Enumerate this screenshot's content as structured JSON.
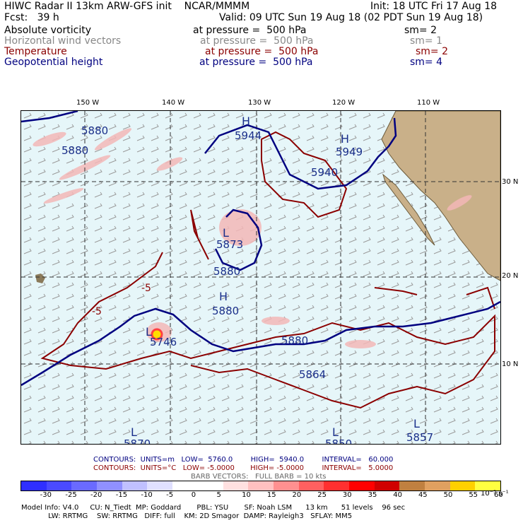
{
  "header": {
    "line1_left": "HIWC Radar II 13km ARW-GFS init    NCAR/MMMM",
    "line1_right": "Init: 18 UTC Fri 17 Aug 18",
    "line2_left": "Fcst:   39 h",
    "line2_right": "Valid: 09 UTC Sun 19 Aug 18 (02 PDT Sun 19 Aug 18)"
  },
  "layers": [
    {
      "name": "Absolute vorticity",
      "pressure": "at pressure =  500 hPa",
      "sm": "sm= 2",
      "color": "#000000"
    },
    {
      "name": "Horizontal wind vectors",
      "pressure": "at pressure =  500 hPa",
      "sm": "sm= 1",
      "color": "#888888"
    },
    {
      "name": "Temperature",
      "pressure": "at pressure =  500 hPa",
      "sm": "sm= 2",
      "color": "#8b0000"
    },
    {
      "name": "Geopotential height",
      "pressure": "at pressure =  500 hPa",
      "sm": "sm= 4",
      "color": "#000080"
    }
  ],
  "axes": {
    "lon_labels": [
      "150 W",
      "140 W",
      "130 W",
      "120 W",
      "110 W"
    ],
    "lat_labels": [
      "30 N",
      "20 N",
      "10 N"
    ]
  },
  "map_labels": {
    "height_contours": [
      "5880",
      "5880",
      "5944",
      "5949",
      "5940",
      "5873",
      "5880",
      "5880",
      "5880",
      "5864",
      "5857",
      "5746",
      "5870",
      "5850"
    ],
    "H_marks": [
      "H",
      "H",
      "H"
    ],
    "L_marks": [
      "L",
      "L",
      "L",
      "L",
      "L"
    ],
    "temp_labels": [
      "-5",
      "-5"
    ]
  },
  "contours": {
    "line1": {
      "label": "CONTOURS:  UNITS=m   LOW=  5760.0        HIGH=  5940.0        INTERVAL=   60.000",
      "color": "#000080"
    },
    "line2": {
      "label": "CONTOURS:  UNITS=°C   LOW= -5.0000       HIGH= -5.0000        INTERVAL=   5.0000",
      "color": "#8b0000"
    },
    "barb": "BARB VECTORS:   FULL BARB = 10 kts"
  },
  "colorbar": {
    "ticks": [
      "-30",
      "-25",
      "-20",
      "-15",
      "-10",
      "-5",
      "0",
      "5",
      "10",
      "15",
      "20",
      "25",
      "30",
      "35",
      "40",
      "45",
      "50",
      "55",
      "60"
    ],
    "unit": "10⁻⁵ s⁻¹",
    "colors": [
      "#2f2fff",
      "#4a4aff",
      "#6a6aff",
      "#9090ff",
      "#c0c0ff",
      "#e0e0ff",
      "#ffffff",
      "#ffffff",
      "#ffe0e0",
      "#ffc0c0",
      "#ff9090",
      "#ff6060",
      "#ff3030",
      "#ff0000",
      "#d00000",
      "#c08040",
      "#e0a060",
      "#ffd000",
      "#ffff40"
    ]
  },
  "footer": {
    "line1": "Model Info: V4.0     CU: N_Tiedt  MP: Goddard       PBL: YSU       SF: Noah LSM      13 km      51 levels    96 sec",
    "line2": "            LW: RRTMG    SW: RRTMG   DIFF: full    KM: 2D Smagor  DAMP: Rayleigh3   SFLAY: MM5"
  }
}
